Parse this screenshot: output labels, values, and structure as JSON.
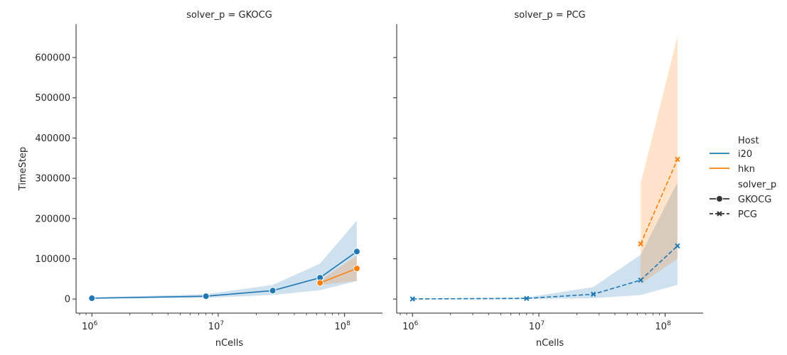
{
  "chart_data": {
    "type": "line",
    "xlabel": "nCells",
    "ylabel": "TimeStep",
    "x_scale": "log",
    "x_tick_labels": [
      {
        "exp": 6,
        "label": "10",
        "sup": "6"
      },
      {
        "exp": 7,
        "label": "10",
        "sup": "7"
      },
      {
        "exp": 8,
        "label": "10",
        "sup": "8"
      }
    ],
    "y_ticks": [
      0,
      100000,
      200000,
      300000,
      400000,
      500000,
      600000
    ],
    "y_tick_labels": [
      "0",
      "100000",
      "200000",
      "300000",
      "400000",
      "500000",
      "600000"
    ],
    "ylim": [
      -35000,
      683000
    ],
    "legend": {
      "placement": "right",
      "hue_title": "Host",
      "hue_items": [
        {
          "label": "i20",
          "color": "#1f77b4"
        },
        {
          "label": "hkn",
          "color": "#ff7f0e"
        }
      ],
      "style_title": "solver_p",
      "style_items": [
        {
          "label": "GKOCG",
          "marker": "circle",
          "dash": "solid"
        },
        {
          "label": "PCG",
          "marker": "x",
          "dash": "dashed"
        }
      ]
    },
    "panels": [
      {
        "title": "solver_p = GKOCG",
        "series": [
          {
            "host": "i20",
            "color": "#1f77b4",
            "marker": "circle",
            "dash": "solid",
            "x": [
              1000000,
              8000000,
              27000000,
              64000000,
              125000000
            ],
            "y": [
              2000,
              7000,
              21000,
              53000,
              118000
            ],
            "ci_low": [
              500,
              3000,
              10000,
              22000,
              45000
            ],
            "ci_high": [
              4000,
              12000,
              35000,
              88000,
              195000
            ]
          },
          {
            "host": "hkn",
            "color": "#ff7f0e",
            "marker": "circle",
            "dash": "solid",
            "x": [
              64000000,
              125000000
            ],
            "y": [
              40000,
              76000
            ],
            "ci_low": [
              35000,
              45000
            ],
            "ci_high": [
              46000,
              108000
            ]
          }
        ]
      },
      {
        "title": "solver_p = PCG",
        "series": [
          {
            "host": "i20",
            "color": "#1f77b4",
            "marker": "x",
            "dash": "dashed",
            "x": [
              1000000,
              8000000,
              27000000,
              64000000,
              125000000
            ],
            "y": [
              200,
              1500,
              12000,
              47000,
              132000
            ],
            "ci_low": [
              0,
              0,
              2000,
              10000,
              35000
            ],
            "ci_high": [
              1000,
              4000,
              30000,
              110000,
              290000
            ]
          },
          {
            "host": "hkn",
            "color": "#ff7f0e",
            "marker": "x",
            "dash": "dashed",
            "x": [
              64000000,
              125000000
            ],
            "y": [
              137000,
              347000
            ],
            "ci_low": [
              38000,
              100000
            ],
            "ci_high": [
              287000,
              653000
            ]
          }
        ]
      }
    ]
  }
}
